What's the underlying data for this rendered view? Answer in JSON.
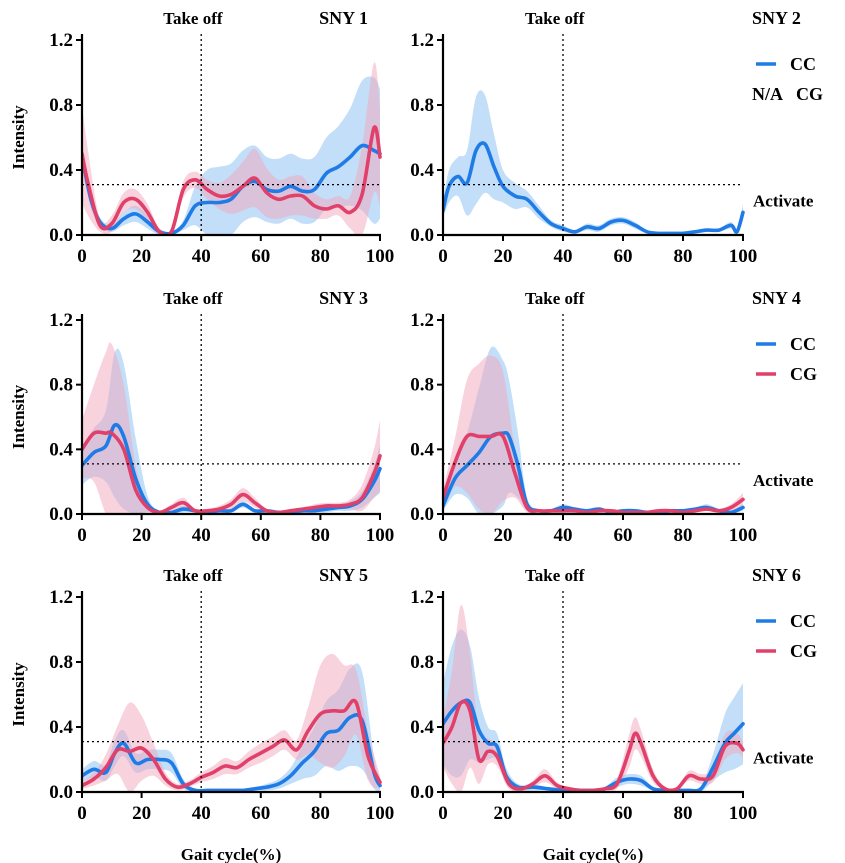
{
  "colors": {
    "CC": "#1f7be6",
    "CG": "#e0406a",
    "CC_band": "#8fc3f2",
    "CG_band": "#f2a7bc"
  },
  "shared": {
    "ylabel": "Intensity",
    "xlabel": "Gait cycle(%)",
    "takeoff_label": "Take off",
    "activate_label": "Activate",
    "xticks": [
      "0",
      "20",
      "40",
      "60",
      "80",
      "100"
    ],
    "yticks": [
      "0.0",
      "0.4",
      "0.8",
      "1.2"
    ]
  },
  "chart_data": [
    {
      "type": "line",
      "title": "SNY 1",
      "xlim": [
        0,
        100
      ],
      "ylim": [
        0,
        1.2
      ],
      "takeoff_x": 40,
      "threshold_y": 0.31,
      "legend": [],
      "series": [
        {
          "name": "CC",
          "x": [
            0,
            3,
            6,
            10,
            14,
            18,
            22,
            26,
            30,
            34,
            38,
            42,
            46,
            50,
            54,
            58,
            62,
            66,
            70,
            74,
            78,
            82,
            86,
            90,
            94,
            98,
            100
          ],
          "y": [
            0.48,
            0.22,
            0.08,
            0.04,
            0.1,
            0.13,
            0.08,
            0.02,
            0.01,
            0.06,
            0.18,
            0.2,
            0.2,
            0.22,
            0.3,
            0.33,
            0.28,
            0.27,
            0.3,
            0.27,
            0.28,
            0.38,
            0.42,
            0.48,
            0.55,
            0.52,
            0.5
          ],
          "band": [
            0.08,
            0.05,
            0.03,
            0.02,
            0.04,
            0.05,
            0.04,
            0.02,
            0.01,
            0.03,
            0.12,
            0.2,
            0.22,
            0.22,
            0.22,
            0.22,
            0.2,
            0.2,
            0.2,
            0.2,
            0.2,
            0.22,
            0.25,
            0.3,
            0.4,
            0.45,
            0.4
          ]
        },
        {
          "name": "CG",
          "x": [
            0,
            2,
            6,
            10,
            14,
            18,
            22,
            26,
            30,
            34,
            38,
            42,
            46,
            50,
            54,
            58,
            62,
            66,
            70,
            74,
            78,
            82,
            86,
            90,
            94,
            98,
            100
          ],
          "y": [
            0.5,
            0.32,
            0.06,
            0.07,
            0.2,
            0.22,
            0.14,
            0.02,
            0.02,
            0.28,
            0.34,
            0.28,
            0.24,
            0.25,
            0.3,
            0.35,
            0.26,
            0.22,
            0.24,
            0.24,
            0.18,
            0.16,
            0.18,
            0.14,
            0.25,
            0.66,
            0.48
          ],
          "band": [
            0.3,
            0.2,
            0.04,
            0.05,
            0.06,
            0.06,
            0.05,
            0.02,
            0.02,
            0.05,
            0.05,
            0.06,
            0.08,
            0.12,
            0.15,
            0.18,
            0.15,
            0.12,
            0.12,
            0.12,
            0.08,
            0.06,
            0.06,
            0.1,
            0.3,
            0.4,
            0.3
          ]
        }
      ]
    },
    {
      "type": "line",
      "title": "SNY 2",
      "xlim": [
        0,
        100
      ],
      "ylim": [
        0,
        1.2
      ],
      "takeoff_x": 40,
      "threshold_y": 0.31,
      "legend": [
        {
          "series": "CC",
          "prefix": "",
          "label": "CC"
        },
        {
          "series": "",
          "prefix": "N/A",
          "label": "CG"
        }
      ],
      "series": [
        {
          "name": "CC",
          "x": [
            0,
            2,
            5,
            8,
            11,
            14,
            17,
            20,
            24,
            28,
            32,
            36,
            40,
            44,
            48,
            52,
            56,
            60,
            64,
            68,
            72,
            76,
            80,
            84,
            88,
            92,
            96,
            98,
            100
          ],
          "y": [
            0.15,
            0.3,
            0.36,
            0.32,
            0.52,
            0.56,
            0.42,
            0.3,
            0.24,
            0.22,
            0.14,
            0.07,
            0.04,
            0.02,
            0.05,
            0.04,
            0.08,
            0.09,
            0.06,
            0.02,
            0.01,
            0.01,
            0.01,
            0.02,
            0.03,
            0.03,
            0.06,
            0.02,
            0.14
          ],
          "band": [
            0.05,
            0.1,
            0.12,
            0.2,
            0.33,
            0.3,
            0.2,
            0.1,
            0.08,
            0.05,
            0.04,
            0.02,
            0.02,
            0.01,
            0.02,
            0.02,
            0.02,
            0.02,
            0.02,
            0.01,
            0.01,
            0.01,
            0.01,
            0.01,
            0.01,
            0.01,
            0.02,
            0.01,
            0.05
          ]
        }
      ]
    },
    {
      "type": "line",
      "title": "SNY 3",
      "xlim": [
        0,
        100
      ],
      "ylim": [
        0,
        1.2
      ],
      "takeoff_x": 40,
      "threshold_y": 0.31,
      "legend": [],
      "series": [
        {
          "name": "CC",
          "x": [
            0,
            4,
            8,
            11,
            14,
            18,
            22,
            26,
            30,
            34,
            38,
            42,
            46,
            50,
            54,
            58,
            62,
            66,
            70,
            74,
            78,
            82,
            86,
            90,
            94,
            98,
            100
          ],
          "y": [
            0.3,
            0.38,
            0.42,
            0.55,
            0.48,
            0.22,
            0.06,
            0.01,
            0.01,
            0.03,
            0.02,
            0.01,
            0.02,
            0.02,
            0.06,
            0.02,
            0.02,
            0.01,
            0.01,
            0.02,
            0.02,
            0.03,
            0.04,
            0.05,
            0.09,
            0.2,
            0.28
          ],
          "band": [
            0.12,
            0.15,
            0.22,
            0.45,
            0.45,
            0.25,
            0.05,
            0.01,
            0.01,
            0.02,
            0.01,
            0.01,
            0.01,
            0.01,
            0.02,
            0.01,
            0.01,
            0.01,
            0.01,
            0.01,
            0.01,
            0.02,
            0.02,
            0.03,
            0.05,
            0.1,
            0.15
          ]
        },
        {
          "name": "CG",
          "x": [
            0,
            4,
            8,
            10,
            14,
            18,
            22,
            26,
            30,
            34,
            38,
            42,
            46,
            50,
            54,
            58,
            62,
            66,
            70,
            74,
            78,
            82,
            86,
            90,
            94,
            98,
            100
          ],
          "y": [
            0.4,
            0.5,
            0.5,
            0.5,
            0.4,
            0.15,
            0.04,
            0.01,
            0.04,
            0.07,
            0.02,
            0.02,
            0.03,
            0.06,
            0.12,
            0.07,
            0.02,
            0.01,
            0.02,
            0.03,
            0.04,
            0.05,
            0.05,
            0.06,
            0.1,
            0.25,
            0.36
          ],
          "band": [
            0.18,
            0.3,
            0.5,
            0.55,
            0.4,
            0.15,
            0.03,
            0.01,
            0.02,
            0.03,
            0.01,
            0.01,
            0.02,
            0.03,
            0.04,
            0.03,
            0.01,
            0.01,
            0.01,
            0.01,
            0.02,
            0.02,
            0.02,
            0.03,
            0.08,
            0.15,
            0.22
          ]
        }
      ]
    },
    {
      "type": "line",
      "title": "SNY 4",
      "xlim": [
        0,
        100
      ],
      "ylim": [
        0,
        1.2
      ],
      "takeoff_x": 40,
      "threshold_y": 0.31,
      "legend": [
        {
          "series": "CC",
          "prefix": "",
          "label": "CC"
        },
        {
          "series": "CG",
          "prefix": "",
          "label": "CG"
        }
      ],
      "series": [
        {
          "name": "CC",
          "x": [
            0,
            4,
            8,
            12,
            16,
            20,
            22,
            25,
            28,
            32,
            36,
            40,
            44,
            48,
            52,
            56,
            60,
            64,
            68,
            72,
            76,
            80,
            84,
            88,
            92,
            96,
            100
          ],
          "y": [
            0.05,
            0.22,
            0.3,
            0.38,
            0.48,
            0.5,
            0.48,
            0.3,
            0.06,
            0.02,
            0.02,
            0.04,
            0.03,
            0.02,
            0.03,
            0.01,
            0.02,
            0.02,
            0.01,
            0.01,
            0.02,
            0.02,
            0.03,
            0.04,
            0.02,
            0.01,
            0.04
          ],
          "band": [
            0.03,
            0.1,
            0.2,
            0.4,
            0.55,
            0.45,
            0.35,
            0.2,
            0.04,
            0.01,
            0.01,
            0.02,
            0.01,
            0.01,
            0.01,
            0.01,
            0.01,
            0.01,
            0.01,
            0.01,
            0.01,
            0.01,
            0.01,
            0.02,
            0.01,
            0.01,
            0.02
          ]
        },
        {
          "name": "CG",
          "x": [
            0,
            4,
            8,
            12,
            16,
            20,
            24,
            28,
            32,
            36,
            40,
            44,
            48,
            52,
            56,
            60,
            64,
            68,
            72,
            76,
            80,
            84,
            88,
            92,
            96,
            100
          ],
          "y": [
            0.1,
            0.32,
            0.48,
            0.48,
            0.48,
            0.48,
            0.25,
            0.04,
            0.02,
            0.02,
            0.02,
            0.02,
            0.01,
            0.02,
            0.02,
            0.01,
            0.01,
            0.01,
            0.02,
            0.02,
            0.01,
            0.02,
            0.03,
            0.02,
            0.04,
            0.09
          ],
          "band": [
            0.05,
            0.15,
            0.35,
            0.45,
            0.5,
            0.4,
            0.15,
            0.03,
            0.01,
            0.01,
            0.01,
            0.01,
            0.01,
            0.01,
            0.01,
            0.01,
            0.01,
            0.01,
            0.01,
            0.01,
            0.01,
            0.01,
            0.01,
            0.01,
            0.02,
            0.04
          ]
        }
      ]
    },
    {
      "type": "line",
      "title": "SNY 5",
      "xlim": [
        0,
        100
      ],
      "ylim": [
        0,
        1.2
      ],
      "takeoff_x": 40,
      "threshold_y": 0.31,
      "legend": [],
      "series": [
        {
          "name": "CC",
          "x": [
            0,
            4,
            8,
            11,
            14,
            18,
            22,
            26,
            30,
            34,
            38,
            42,
            46,
            50,
            54,
            58,
            62,
            66,
            70,
            74,
            78,
            82,
            86,
            90,
            94,
            98,
            100
          ],
          "y": [
            0.1,
            0.14,
            0.12,
            0.24,
            0.3,
            0.18,
            0.2,
            0.2,
            0.18,
            0.05,
            0.01,
            0.01,
            0.01,
            0.01,
            0.01,
            0.02,
            0.03,
            0.05,
            0.1,
            0.18,
            0.25,
            0.36,
            0.38,
            0.46,
            0.44,
            0.12,
            0.04
          ],
          "band": [
            0.04,
            0.05,
            0.05,
            0.08,
            0.08,
            0.06,
            0.06,
            0.06,
            0.06,
            0.03,
            0.01,
            0.01,
            0.01,
            0.01,
            0.01,
            0.01,
            0.02,
            0.03,
            0.05,
            0.1,
            0.15,
            0.2,
            0.25,
            0.3,
            0.3,
            0.1,
            0.04
          ]
        },
        {
          "name": "CG",
          "x": [
            0,
            4,
            8,
            12,
            16,
            20,
            24,
            28,
            32,
            36,
            40,
            44,
            48,
            52,
            56,
            60,
            64,
            68,
            72,
            76,
            80,
            84,
            88,
            92,
            96,
            100
          ],
          "y": [
            0.04,
            0.08,
            0.15,
            0.26,
            0.25,
            0.27,
            0.2,
            0.08,
            0.03,
            0.05,
            0.09,
            0.12,
            0.16,
            0.15,
            0.2,
            0.24,
            0.28,
            0.32,
            0.26,
            0.38,
            0.48,
            0.5,
            0.5,
            0.55,
            0.22,
            0.06
          ],
          "band": [
            0.02,
            0.04,
            0.08,
            0.15,
            0.3,
            0.2,
            0.1,
            0.04,
            0.02,
            0.02,
            0.03,
            0.04,
            0.05,
            0.04,
            0.05,
            0.06,
            0.06,
            0.06,
            0.06,
            0.15,
            0.3,
            0.35,
            0.28,
            0.2,
            0.15,
            0.04
          ]
        }
      ]
    },
    {
      "type": "line",
      "title": "SNY 6",
      "xlim": [
        0,
        100
      ],
      "ylim": [
        0,
        1.2
      ],
      "takeoff_x": 40,
      "threshold_y": 0.31,
      "legend": [
        {
          "series": "CC",
          "prefix": "",
          "label": "CC"
        },
        {
          "series": "CG",
          "prefix": "",
          "label": "CG"
        }
      ],
      "series": [
        {
          "name": "CC",
          "x": [
            0,
            3,
            6,
            9,
            12,
            15,
            18,
            21,
            25,
            30,
            35,
            40,
            45,
            50,
            54,
            58,
            62,
            66,
            70,
            74,
            78,
            82,
            86,
            90,
            94,
            97,
            100
          ],
          "y": [
            0.42,
            0.5,
            0.55,
            0.55,
            0.38,
            0.3,
            0.28,
            0.1,
            0.03,
            0.03,
            0.02,
            0.01,
            0.01,
            0.01,
            0.02,
            0.06,
            0.08,
            0.07,
            0.02,
            0.01,
            0.01,
            0.01,
            0.02,
            0.15,
            0.3,
            0.36,
            0.42
          ],
          "band": [
            0.25,
            0.4,
            0.45,
            0.35,
            0.2,
            0.1,
            0.08,
            0.05,
            0.02,
            0.02,
            0.01,
            0.01,
            0.01,
            0.01,
            0.01,
            0.03,
            0.03,
            0.03,
            0.01,
            0.01,
            0.01,
            0.01,
            0.02,
            0.08,
            0.18,
            0.22,
            0.25
          ]
        },
        {
          "name": "CG",
          "x": [
            0,
            3,
            6,
            9,
            12,
            15,
            18,
            22,
            26,
            30,
            34,
            38,
            42,
            46,
            50,
            54,
            58,
            62,
            64,
            66,
            70,
            74,
            78,
            82,
            86,
            90,
            94,
            98,
            100
          ],
          "y": [
            0.3,
            0.4,
            0.55,
            0.5,
            0.2,
            0.25,
            0.22,
            0.05,
            0.02,
            0.05,
            0.1,
            0.04,
            0.02,
            0.01,
            0.01,
            0.02,
            0.05,
            0.25,
            0.36,
            0.3,
            0.1,
            0.02,
            0.02,
            0.1,
            0.08,
            0.1,
            0.28,
            0.3,
            0.26
          ],
          "band": [
            0.15,
            0.35,
            0.6,
            0.35,
            0.15,
            0.08,
            0.06,
            0.03,
            0.01,
            0.02,
            0.04,
            0.02,
            0.01,
            0.01,
            0.01,
            0.01,
            0.03,
            0.1,
            0.1,
            0.08,
            0.04,
            0.01,
            0.01,
            0.03,
            0.03,
            0.04,
            0.08,
            0.06,
            0.05
          ]
        }
      ]
    }
  ]
}
